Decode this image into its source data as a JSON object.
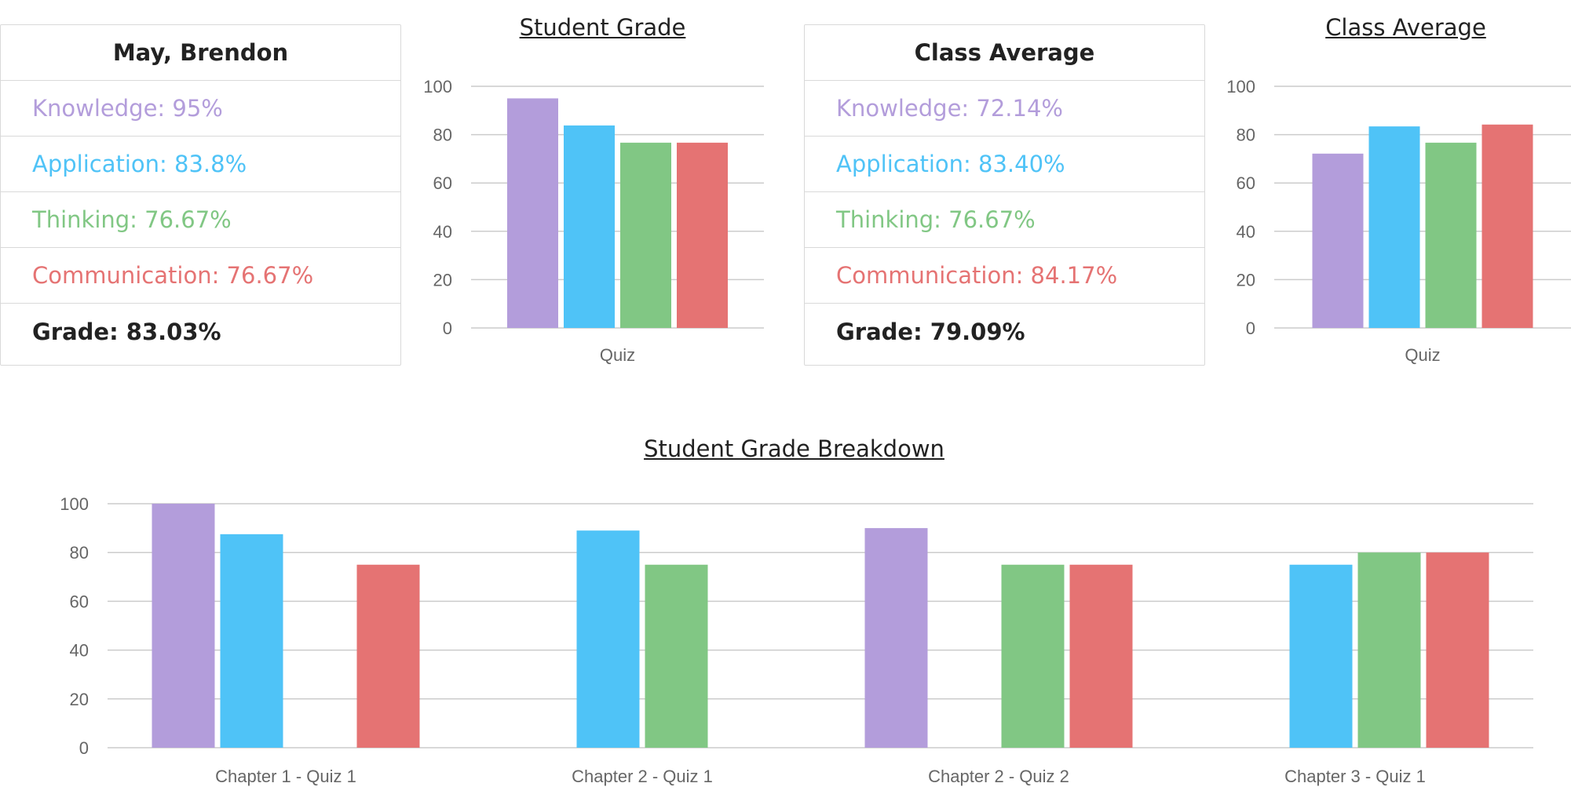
{
  "colors": {
    "knowledge": "#b39ddb",
    "application": "#4fc3f7",
    "thinking": "#81c784",
    "communication": "#e57373",
    "grid": "#cccccc",
    "axis_text": "#666666"
  },
  "student_card": {
    "name": "May, Brendon",
    "knowledge": "Knowledge: 95%",
    "application": "Application: 83.8%",
    "thinking": "Thinking: 76.67%",
    "communication": "Communication: 76.67%",
    "grade": "Grade: 83.03%"
  },
  "class_card": {
    "title": "Class Average",
    "knowledge": "Knowledge: 72.14%",
    "application": "Application: 83.40%",
    "thinking": "Thinking: 76.67%",
    "communication": "Communication: 84.17%",
    "grade": "Grade: 79.09%"
  },
  "chart_data": [
    {
      "id": "student",
      "type": "bar",
      "title": "Student Grade",
      "categories": [
        "Quiz"
      ],
      "series": [
        {
          "color": "knowledge",
          "values": [
            95
          ]
        },
        {
          "color": "application",
          "values": [
            83.8
          ]
        },
        {
          "color": "thinking",
          "values": [
            76.67
          ]
        },
        {
          "color": "communication",
          "values": [
            76.67
          ]
        }
      ],
      "ylim": [
        0,
        100
      ],
      "yticks": [
        0,
        20,
        40,
        60,
        80,
        100
      ],
      "grid": true
    },
    {
      "id": "class",
      "type": "bar",
      "title": "Class Average",
      "categories": [
        "Quiz"
      ],
      "series": [
        {
          "color": "knowledge",
          "values": [
            72.14
          ]
        },
        {
          "color": "application",
          "values": [
            83.4
          ]
        },
        {
          "color": "thinking",
          "values": [
            76.67
          ]
        },
        {
          "color": "communication",
          "values": [
            84.17
          ]
        }
      ],
      "ylim": [
        0,
        100
      ],
      "yticks": [
        0,
        20,
        40,
        60,
        80,
        100
      ],
      "grid": true
    },
    {
      "id": "breakdown",
      "type": "bar",
      "title": "Student Grade Breakdown",
      "categories": [
        "Chapter 1 - Quiz 1",
        "Chapter 2 - Quiz 1",
        "Chapter 2 - Quiz 2",
        "Chapter 3 - Quiz 1"
      ],
      "series": [
        {
          "color": "knowledge",
          "values": [
            100,
            null,
            90,
            null
          ]
        },
        {
          "color": "application",
          "values": [
            87.5,
            89,
            null,
            75
          ]
        },
        {
          "color": "thinking",
          "values": [
            null,
            75,
            75,
            80
          ]
        },
        {
          "color": "communication",
          "values": [
            75,
            null,
            75,
            80
          ]
        }
      ],
      "ylim": [
        0,
        100
      ],
      "yticks": [
        0,
        20,
        40,
        60,
        80,
        100
      ],
      "grid": true
    }
  ]
}
